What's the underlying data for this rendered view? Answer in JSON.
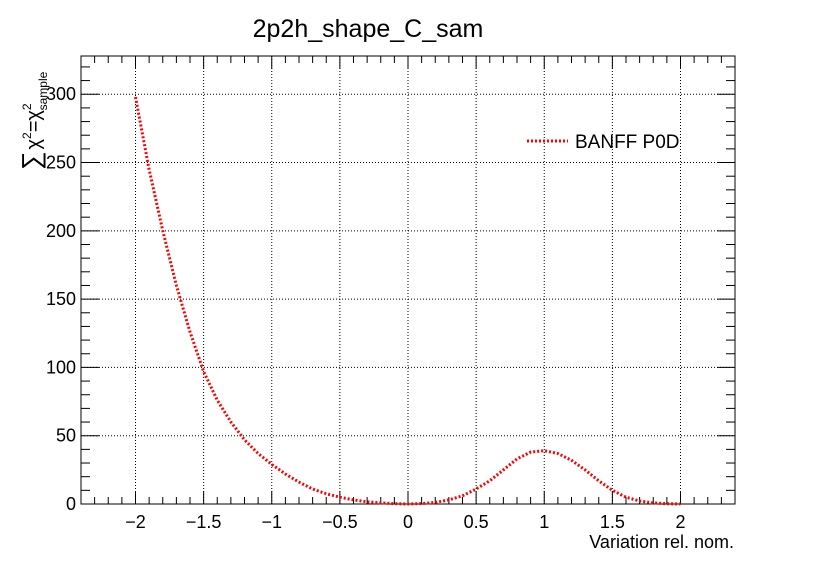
{
  "chart_data": {
    "type": "line",
    "title": "2p2h_shape_C_sam",
    "xlabel": "Variation rel. nom.",
    "ylabel": {
      "sum": "∑",
      "chi": "χ",
      "eq": "=",
      "sub": "sample",
      "sup": "2"
    },
    "xlim": [
      -2.4,
      2.4
    ],
    "ylim": [
      0,
      328
    ],
    "x_ticks": [
      -2,
      -1.5,
      -1,
      -0.5,
      0,
      0.5,
      1,
      1.5,
      2
    ],
    "x_tick_labels": [
      "−2",
      "−1.5",
      "−1",
      "−0.5",
      "0",
      "0.5",
      "1",
      "1.5",
      "2"
    ],
    "y_ticks": [
      0,
      50,
      100,
      150,
      200,
      250,
      300
    ],
    "y_tick_labels": [
      "0",
      "50",
      "100",
      "150",
      "200",
      "250",
      "300"
    ],
    "grid": true,
    "legend_position": "top-right",
    "series": [
      {
        "name": "BANFF P0D",
        "color": "#ff0000",
        "line_style": "dotted",
        "x": [
          -2.0,
          -1.9,
          -1.8,
          -1.7,
          -1.6,
          -1.5,
          -1.4,
          -1.3,
          -1.2,
          -1.1,
          -1.0,
          -0.9,
          -0.8,
          -0.7,
          -0.6,
          -0.5,
          -0.4,
          -0.3,
          -0.2,
          -0.1,
          0.0,
          0.1,
          0.2,
          0.3,
          0.4,
          0.5,
          0.6,
          0.7,
          0.8,
          0.9,
          1.0,
          1.1,
          1.2,
          1.3,
          1.4,
          1.5,
          1.6,
          1.7,
          1.8,
          1.9,
          2.0
        ],
        "y": [
          298,
          245,
          200,
          160,
          126,
          97,
          76,
          60,
          47,
          37,
          29,
          22,
          16,
          11,
          7.5,
          5,
          3,
          1.6,
          0.8,
          0.2,
          0,
          0.3,
          1.2,
          3,
          6,
          11,
          17,
          25,
          33,
          38,
          39,
          37,
          32,
          25,
          17,
          10,
          5,
          2.2,
          0.8,
          0.2,
          0
        ]
      }
    ]
  }
}
